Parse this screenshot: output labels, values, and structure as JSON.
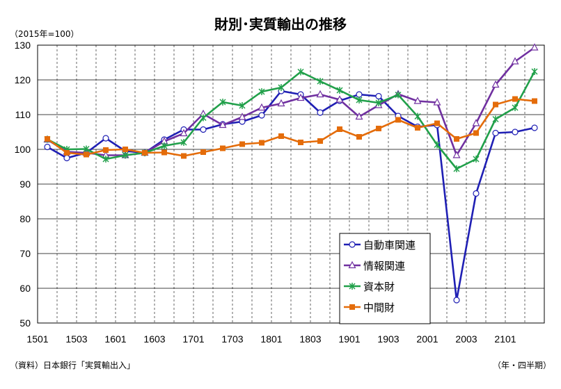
{
  "chart_data": {
    "type": "line",
    "title": "財別･実質輸出の推移",
    "ylabel": "（2015年=100）",
    "xlabel": "（年・四半期）",
    "source": "（資料）日本銀行「実質輸出入」",
    "ylim": [
      50,
      130
    ],
    "yticks": [
      "50",
      "60",
      "70",
      "80",
      "90",
      "100",
      "110",
      "120",
      "130"
    ],
    "xtick_labels": [
      "1501",
      "1503",
      "1601",
      "1603",
      "1701",
      "1703",
      "1801",
      "1803",
      "1901",
      "1903",
      "2001",
      "2003",
      "2101"
    ],
    "x": [
      "1501",
      "1502",
      "1503",
      "1504",
      "1601",
      "1602",
      "1603",
      "1604",
      "1701",
      "1702",
      "1703",
      "1704",
      "1801",
      "1802",
      "1803",
      "1804",
      "1901",
      "1902",
      "1903",
      "1904",
      "2001",
      "2002",
      "2003",
      "2004",
      "2101",
      "2102"
    ],
    "grid": true,
    "legend_position": "center-right",
    "series": [
      {
        "name": "自動車関連",
        "color": "#1f1fb4",
        "marker": "circle",
        "values": [
          100.7,
          97.5,
          99.0,
          103.2,
          99.5,
          99.0,
          102.8,
          105.7,
          105.7,
          107.2,
          108.0,
          109.8,
          116.8,
          115.8,
          110.6,
          114.0,
          115.8,
          115.3,
          109.6,
          106.5,
          107.0,
          56.6,
          87.3,
          104.7,
          105.0,
          106.2
        ]
      },
      {
        "name": "情報関連",
        "color": "#7030a0",
        "marker": "triangle",
        "values": [
          102.8,
          99.3,
          99.0,
          98.3,
          98.3,
          99.0,
          102.3,
          104.6,
          110.2,
          107.0,
          109.3,
          112.0,
          113.2,
          114.8,
          115.8,
          114.3,
          109.4,
          112.7,
          115.9,
          113.9,
          113.5,
          98.3,
          107.5,
          118.6,
          125.3,
          129.3
        ]
      },
      {
        "name": "資本財",
        "color": "#21a04a",
        "marker": "x",
        "values": [
          102.9,
          100.0,
          100.1,
          97.2,
          98.3,
          99.0,
          101.0,
          102.0,
          109.1,
          113.6,
          112.6,
          116.6,
          117.8,
          122.3,
          119.6,
          117.0,
          114.2,
          113.4,
          115.7,
          109.5,
          101.3,
          94.4,
          97.2,
          108.7,
          112.0,
          122.4
        ]
      },
      {
        "name": "中間財",
        "color": "#e46c0a",
        "marker": "square",
        "values": [
          103.0,
          99.0,
          98.5,
          99.8,
          100.0,
          99.0,
          99.1,
          98.1,
          99.2,
          100.3,
          101.5,
          101.9,
          103.8,
          102.0,
          102.4,
          105.8,
          103.6,
          106.0,
          108.5,
          106.2,
          107.5,
          103.0,
          104.7,
          112.9,
          114.5,
          113.9
        ]
      }
    ]
  }
}
